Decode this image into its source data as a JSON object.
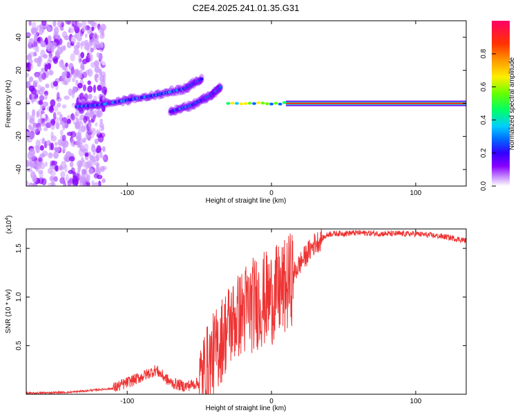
{
  "chart_data": [
    {
      "type": "heatmap",
      "title": "C2E4.2025.241.01.35.G31",
      "xlabel": "Height of straight line (km)",
      "ylabel": "Frequency (Hz)",
      "xlim": [
        -170,
        135
      ],
      "ylim": [
        -50,
        50
      ],
      "xticks": [
        -100,
        0,
        100
      ],
      "yticks": [
        -40,
        -20,
        0,
        20,
        40
      ],
      "colorbar": {
        "label": "Normalized spectral amplitude",
        "range": [
          0,
          1
        ],
        "ticks": [
          0.0,
          0.2,
          0.4,
          0.6,
          0.8
        ],
        "colors": [
          "#ffffff",
          "#cc99ff",
          "#8800ff",
          "#3300ff",
          "#0066ff",
          "#00ccff",
          "#00ff66",
          "#66ff00",
          "#ffee00",
          "#ff9900",
          "#ff3300",
          "#ff0066"
        ]
      },
      "features": [
        {
          "name": "noise region",
          "x_range": [
            -170,
            -120
          ],
          "freq_range": [
            -50,
            50
          ],
          "amplitude": 0.1
        },
        {
          "name": "rising track",
          "x": [
            -135,
            -120,
            -100,
            -80,
            -60,
            -48
          ],
          "freq": [
            -2,
            -1,
            2,
            5,
            9,
            15
          ],
          "amplitude": 0.35
        },
        {
          "name": "second track",
          "x": [
            -70,
            -55,
            -42,
            -35
          ],
          "freq": [
            -5,
            -1,
            5,
            10
          ],
          "amplitude": 0.35
        },
        {
          "name": "carrier line",
          "x_range": [
            10,
            135
          ],
          "freq": 0,
          "amplitude": 0.95
        }
      ]
    },
    {
      "type": "line",
      "xlabel": "Height of straight line (km)",
      "ylabel": "SNR (10 * v/v)",
      "exponent_label": "(x10",
      "exponent_power": "4",
      "x_range": [
        -170,
        135
      ],
      "ylim": [
        0,
        1.7
      ],
      "xticks": [
        -100,
        0,
        100
      ],
      "yticks": [
        0.5,
        1.0,
        1.5
      ],
      "color": "#ee3333",
      "trend": {
        "x": [
          -170,
          -140,
          -110,
          -90,
          -80,
          -70,
          -60,
          -50,
          -40,
          -30,
          -20,
          -10,
          0,
          10,
          20,
          30,
          40,
          60,
          80,
          100,
          120,
          135
        ],
        "snr": [
          0.01,
          0.02,
          0.06,
          0.18,
          0.25,
          0.12,
          0.08,
          0.12,
          0.4,
          0.7,
          0.85,
          0.95,
          1.0,
          1.1,
          1.35,
          1.55,
          1.65,
          1.66,
          1.65,
          1.65,
          1.62,
          1.58
        ]
      }
    }
  ]
}
